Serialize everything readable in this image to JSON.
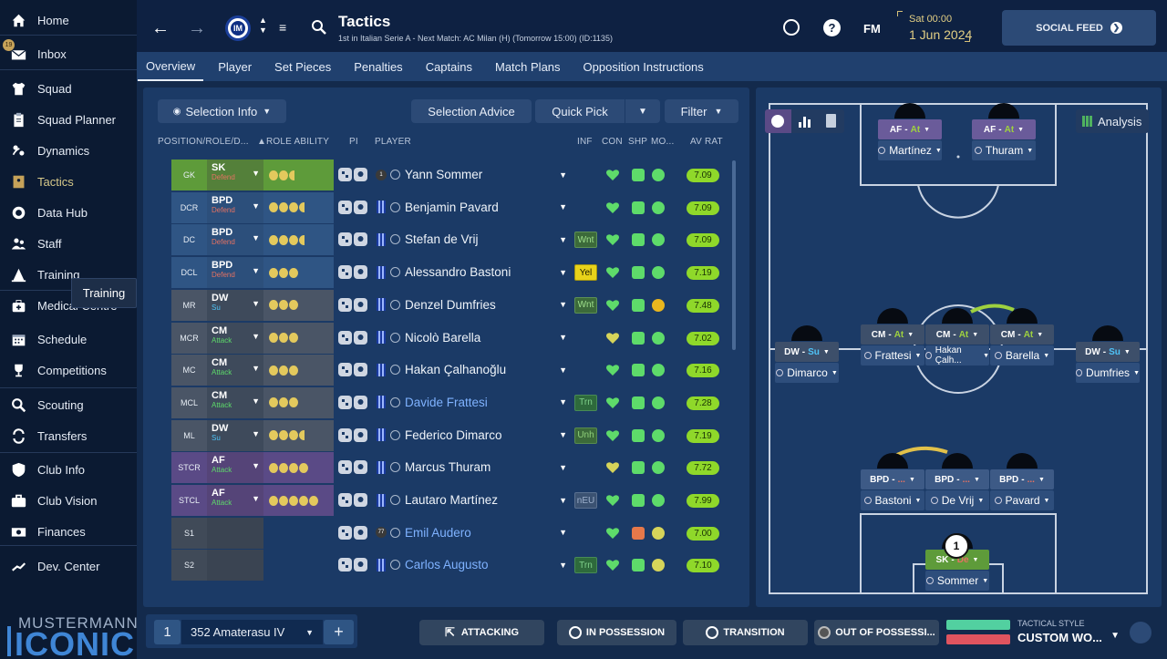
{
  "sidebar": {
    "items": [
      {
        "label": "Home",
        "icon": "home-icon"
      },
      {
        "label": "Inbox",
        "icon": "envelope-icon"
      },
      {
        "label": "Squad",
        "icon": "shirt-icon"
      },
      {
        "label": "Squad Planner",
        "icon": "clipboard-icon"
      },
      {
        "label": "Dynamics",
        "icon": "dynamics-icon"
      },
      {
        "label": "Tactics",
        "icon": "tactics-board-icon"
      },
      {
        "label": "Data Hub",
        "icon": "data-hub-icon"
      },
      {
        "label": "Staff",
        "icon": "staff-icon"
      },
      {
        "label": "Training",
        "icon": "cone-icon"
      },
      {
        "label": "Medical Centre",
        "icon": "medical-kit-icon"
      },
      {
        "label": "Schedule",
        "icon": "calendar-icon"
      },
      {
        "label": "Competitions",
        "icon": "trophy-icon"
      },
      {
        "label": "Scouting",
        "icon": "search-icon"
      },
      {
        "label": "Transfers",
        "icon": "transfer-arrows-icon"
      },
      {
        "label": "Club Info",
        "icon": "shield-icon"
      },
      {
        "label": "Club Vision",
        "icon": "briefcase-icon"
      },
      {
        "label": "Finances",
        "icon": "money-icon"
      },
      {
        "label": "Dev. Center",
        "icon": "trend-line-icon"
      }
    ],
    "inbox_badge": "19",
    "tooltip": "Training",
    "logo_top": "MUSTERMANN",
    "logo_bottom": "ICONIC"
  },
  "topbar": {
    "title": "Tactics",
    "subtitle": "1st in Italian Serie A - Next Match: AC Milan (H) (Tomorrow 15:00) (ID:1135)",
    "date_time": "Sat 00:00",
    "date": "1 Jun 2024",
    "fm_label": "FM",
    "social_feed": "SOCIAL FEED"
  },
  "subnav": {
    "tabs": [
      "Overview",
      "Player",
      "Set Pieces",
      "Penalties",
      "Captains",
      "Match Plans",
      "Opposition Instructions"
    ]
  },
  "toolbar": {
    "selection_info": "Selection Info",
    "selection_advice": "Selection Advice",
    "quick_pick": "Quick Pick",
    "filter": "Filter"
  },
  "table": {
    "headers": [
      "POSITION/ROLE/D...",
      "ROLE ABILITY",
      "PI",
      "PLAYER",
      "INF",
      "CON",
      "SHP",
      "MO...",
      "AV RAT"
    ],
    "rows": [
      {
        "pos": "GK",
        "role": "SK",
        "duty": "Defend",
        "dots": 2.5,
        "name": "Yann Sommer",
        "inf": "",
        "rat": "7.09",
        "pc": "#5e9b3a",
        "rc": "#54803a",
        "ac": "#5e9b3a",
        "dc": "#e57262",
        "num": "1"
      },
      {
        "pos": "DCR",
        "role": "BPD",
        "duty": "Defend",
        "dots": 3.5,
        "name": "Benjamin Pavard",
        "inf": "",
        "rat": "7.09",
        "pc": "#2f5584",
        "rc": "#2c4f7b",
        "ac": "#2f5584",
        "dc": "#e57262"
      },
      {
        "pos": "DC",
        "role": "BPD",
        "duty": "Defend",
        "dots": 3.5,
        "name": "Stefan de Vrij",
        "inf": "Wnt",
        "rat": "7.09",
        "pc": "#2f5584",
        "rc": "#2c4f7b",
        "ac": "#2f5584",
        "dc": "#e57262"
      },
      {
        "pos": "DCL",
        "role": "BPD",
        "duty": "Defend",
        "dots": 3,
        "name": "Alessandro Bastoni",
        "inf": "Yel",
        "rat": "7.19",
        "pc": "#2f5584",
        "rc": "#2c4f7b",
        "ac": "#2f5584",
        "dc": "#e57262"
      },
      {
        "pos": "MR",
        "role": "DW",
        "duty": "Su",
        "dots": 3,
        "name": "Denzel Dumfries",
        "inf": "Wnt",
        "rat": "7.48",
        "pc": "#4a5566",
        "rc": "#3e4a5b",
        "ac": "#4a5566",
        "dc": "#4fc3f7"
      },
      {
        "pos": "MCR",
        "role": "CM",
        "duty": "Attack",
        "dots": 3,
        "name": "Nicolò Barella",
        "inf": "",
        "rat": "7.02",
        "pc": "#4a5566",
        "rc": "#3e4a5b",
        "ac": "#4a5566",
        "dc": "#5edb6a"
      },
      {
        "pos": "MC",
        "role": "CM",
        "duty": "Attack",
        "dots": 3,
        "name": "Hakan Çalhanoğlu",
        "inf": "",
        "rat": "7.16",
        "pc": "#4a5566",
        "rc": "#3e4a5b",
        "ac": "#4a5566",
        "dc": "#5edb6a"
      },
      {
        "pos": "MCL",
        "role": "CM",
        "duty": "Attack",
        "dots": 3,
        "name": "Davide Frattesi",
        "inf": "Trn",
        "rat": "7.28",
        "pc": "#4a5566",
        "rc": "#3e4a5b",
        "ac": "#4a5566",
        "dc": "#5edb6a",
        "link": true
      },
      {
        "pos": "ML",
        "role": "DW",
        "duty": "Su",
        "dots": 3.5,
        "name": "Federico Dimarco",
        "inf": "Unh",
        "rat": "7.19",
        "pc": "#4a5566",
        "rc": "#3e4a5b",
        "ac": "#4a5566",
        "dc": "#4fc3f7"
      },
      {
        "pos": "STCR",
        "role": "AF",
        "duty": "Attack",
        "dots": 4,
        "name": "Marcus Thuram",
        "inf": "",
        "rat": "7.72",
        "pc": "#5a4a86",
        "rc": "#554478",
        "ac": "#5a4a86",
        "dc": "#5edb6a"
      },
      {
        "pos": "STCL",
        "role": "AF",
        "duty": "Attack",
        "dots": 5,
        "name": "Lautaro Martínez",
        "inf": "nEU",
        "rat": "7.99",
        "pc": "#5a4a86",
        "rc": "#554478",
        "ac": "#5a4a86",
        "dc": "#5edb6a"
      },
      {
        "pos": "S1",
        "role": "",
        "duty": "",
        "dots": 0,
        "name": "Emil Audero",
        "inf": "",
        "rat": "7.00",
        "pc": "#404a58",
        "rc": "#3a4452",
        "ac": "transparent",
        "dc": "",
        "link": true,
        "num": "77"
      },
      {
        "pos": "S2",
        "role": "",
        "duty": "",
        "dots": 0,
        "name": "Carlos Augusto",
        "inf": "Trn",
        "rat": "7.10",
        "pc": "#404a58",
        "rc": "#3a4452",
        "ac": "transparent",
        "dc": "",
        "link": true
      }
    ]
  },
  "pitch": {
    "analysis": "Analysis",
    "players": [
      {
        "role": "AF",
        "duty": "At",
        "name": "Martínez"
      },
      {
        "role": "AF",
        "duty": "At",
        "name": "Thuram"
      },
      {
        "role": "DW",
        "duty": "Su",
        "name": "Dimarco"
      },
      {
        "role": "CM",
        "duty": "At",
        "name": "Frattesi"
      },
      {
        "role": "CM",
        "duty": "At",
        "name": "Hakan Çalh..."
      },
      {
        "role": "CM",
        "duty": "At",
        "name": "Barella"
      },
      {
        "role": "DW",
        "duty": "Su",
        "name": "Dumfries"
      },
      {
        "role": "BPD",
        "duty": "...",
        "name": "Bastoni"
      },
      {
        "role": "BPD",
        "duty": "...",
        "name": "De Vrij"
      },
      {
        "role": "BPD",
        "duty": "...",
        "name": "Pavard"
      },
      {
        "role": "SK",
        "duty": "De",
        "name": "Sommer"
      }
    ],
    "gk_number": "1"
  },
  "bottombar": {
    "tactic_slot": "1",
    "tactic_name": "352 Amaterasu IV",
    "attacking": "ATTACKING",
    "in_possession": "IN POSSESSION",
    "transition": "TRANSITION",
    "out_of_possession": "OUT OF POSSESSI...",
    "tactical_style_label": "TACTICAL STYLE",
    "tactical_style": "CUSTOM WO..."
  },
  "colors": {
    "accent": "#2c4a76",
    "rating": "#8fd82a",
    "sidebar_bg": "#0b1a32"
  }
}
